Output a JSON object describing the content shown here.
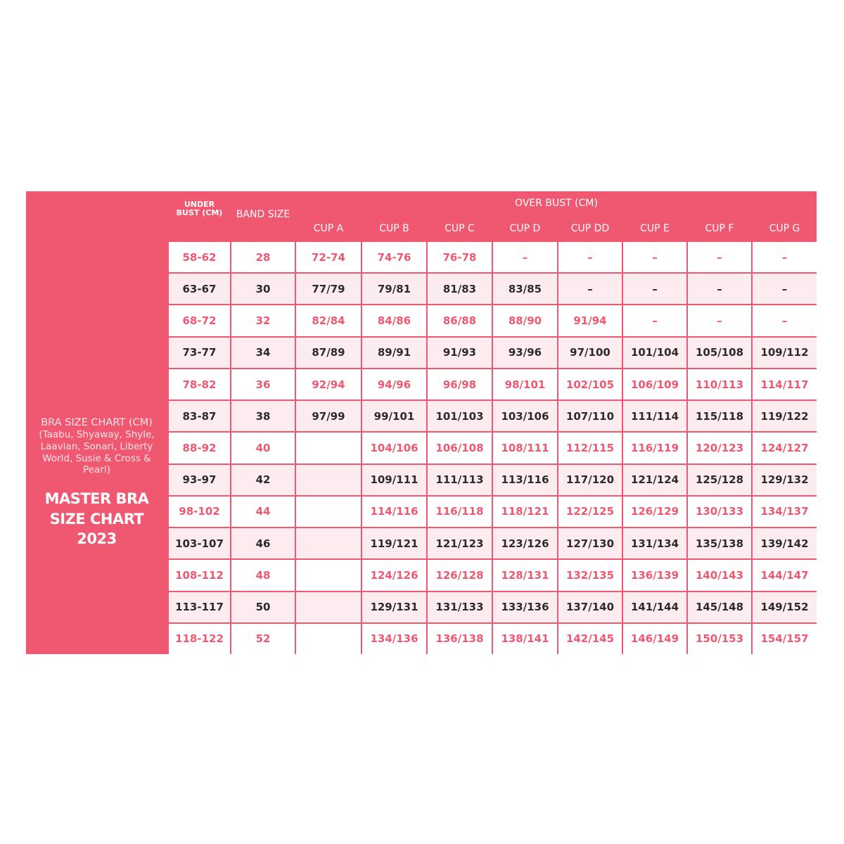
{
  "side_panel": {
    "subtitle_line1": "BRA SIZE CHART (CM)",
    "subtitle_line2": "(Taabu, Shyaway, Shyle, Laavian, Sonari, Liberty World, Susie & Cross & Pearl)",
    "title": "MASTER BRA SIZE CHART 2023"
  },
  "headers": {
    "under_bust": "UNDER BUST (CM)",
    "band_size": "BAND SIZE",
    "over_bust": "OVER BUST  (CM)",
    "cups": [
      "CUP A",
      "CUP B",
      "CUP C",
      "CUP D",
      "CUP DD",
      "CUP E",
      "CUP F",
      "CUP G"
    ]
  },
  "colors": {
    "accent": "#ef5870",
    "row_alt": "#fdecef",
    "text_dark": "#2b2b2b"
  },
  "rows": [
    [
      "58-62",
      "28",
      "72-74",
      "74-76",
      "76-78",
      "–",
      "–",
      "–",
      "–",
      "–"
    ],
    [
      "63-67",
      "30",
      "77/79",
      "79/81",
      "81/83",
      "83/85",
      "–",
      "–",
      "–",
      "–"
    ],
    [
      "68-72",
      "32",
      "82/84",
      "84/86",
      "86/88",
      "88/90",
      "91/94",
      "–",
      "–",
      "–"
    ],
    [
      "73-77",
      "34",
      "87/89",
      "89/91",
      "91/93",
      "93/96",
      "97/100",
      "101/104",
      "105/108",
      "109/112"
    ],
    [
      "78-82",
      "36",
      "92/94",
      "94/96",
      "96/98",
      "98/101",
      "102/105",
      "106/109",
      "110/113",
      "114/117"
    ],
    [
      "83-87",
      "38",
      "97/99",
      "99/101",
      "101/103",
      "103/106",
      "107/110",
      "111/114",
      "115/118",
      "119/122"
    ],
    [
      "88-92",
      "40",
      "",
      "104/106",
      "106/108",
      "108/111",
      "112/115",
      "116/119",
      "120/123",
      "124/127"
    ],
    [
      "93-97",
      "42",
      "",
      "109/111",
      "111/113",
      "113/116",
      "117/120",
      "121/124",
      "125/128",
      "129/132"
    ],
    [
      "98-102",
      "44",
      "",
      "114/116",
      "116/118",
      "118/121",
      "122/125",
      "126/129",
      "130/133",
      "134/137"
    ],
    [
      "103-107",
      "46",
      "",
      "119/121",
      "121/123",
      "123/126",
      "127/130",
      "131/134",
      "135/138",
      "139/142"
    ],
    [
      "108-112",
      "48",
      "",
      "124/126",
      "126/128",
      "128/131",
      "132/135",
      "136/139",
      "140/143",
      "144/147"
    ],
    [
      "113-117",
      "50",
      "",
      "129/131",
      "131/133",
      "133/136",
      "137/140",
      "141/144",
      "145/148",
      "149/152"
    ],
    [
      "118-122",
      "52",
      "",
      "134/136",
      "136/138",
      "138/141",
      "142/145",
      "146/149",
      "150/153",
      "154/157"
    ]
  ]
}
